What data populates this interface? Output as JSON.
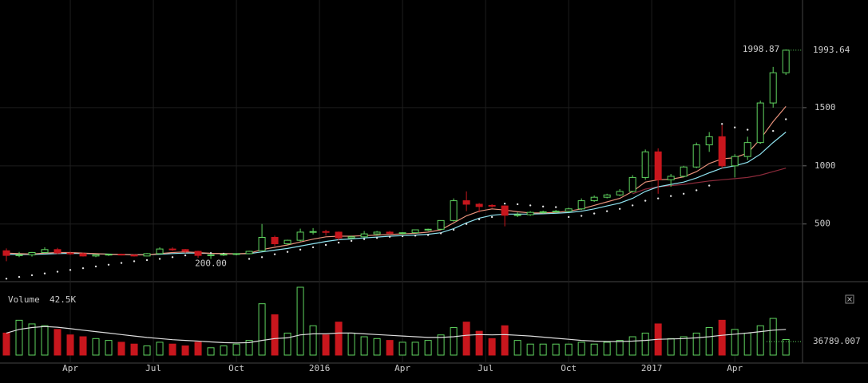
{
  "chart_data": {
    "type": "candlestick",
    "x": [
      3,
      5,
      7,
      9,
      11,
      13,
      15,
      17,
      19,
      21,
      23,
      25,
      27,
      29,
      31,
      33,
      35,
      37,
      39,
      41,
      43,
      45,
      47,
      49,
      51,
      53,
      55,
      57,
      59,
      61,
      63,
      65,
      67,
      69,
      71,
      73,
      75,
      77,
      79,
      81,
      83,
      85,
      87,
      89,
      91,
      93,
      95,
      97,
      99,
      101,
      103,
      105,
      107,
      109,
      111,
      113,
      115,
      117,
      119,
      121,
      123,
      125
    ],
    "open": [
      270,
      230,
      235,
      255,
      280,
      250,
      245,
      225,
      235,
      240,
      235,
      225,
      245,
      285,
      280,
      265,
      230,
      235,
      240,
      245,
      270,
      385,
      330,
      360,
      430,
      435,
      430,
      380,
      390,
      415,
      430,
      420,
      425,
      450,
      455,
      530,
      700,
      670,
      660,
      655,
      575,
      580,
      600,
      605,
      610,
      630,
      700,
      730,
      750,
      780,
      900,
      1120,
      880,
      910,
      990,
      1180,
      1250,
      1000,
      1080,
      1200,
      1540,
      1800
    ],
    "high": [
      290,
      260,
      260,
      300,
      295,
      260,
      255,
      240,
      245,
      245,
      240,
      250,
      300,
      300,
      285,
      270,
      240,
      245,
      250,
      270,
      500,
      400,
      365,
      460,
      465,
      450,
      435,
      400,
      440,
      440,
      440,
      430,
      450,
      460,
      530,
      720,
      780,
      680,
      670,
      660,
      600,
      610,
      615,
      620,
      640,
      720,
      745,
      760,
      800,
      920,
      1140,
      1150,
      930,
      1000,
      1200,
      1290,
      1350,
      1100,
      1250,
      1560,
      1850,
      1998.87
    ],
    "low": [
      180,
      215,
      220,
      250,
      240,
      235,
      220,
      215,
      225,
      230,
      220,
      222,
      240,
      270,
      250,
      210,
      200,
      225,
      235,
      240,
      265,
      310,
      320,
      350,
      410,
      400,
      360,
      370,
      385,
      400,
      410,
      410,
      420,
      440,
      450,
      520,
      610,
      600,
      640,
      480,
      560,
      570,
      590,
      595,
      600,
      620,
      690,
      720,
      740,
      770,
      880,
      760,
      820,
      900,
      980,
      1120,
      980,
      900,
      1050,
      1190,
      1500,
      1780
    ],
    "close": [
      230,
      235,
      255,
      280,
      250,
      245,
      225,
      235,
      240,
      235,
      225,
      245,
      285,
      280,
      265,
      230,
      235,
      240,
      245,
      265,
      385,
      330,
      360,
      430,
      435,
      430,
      380,
      390,
      415,
      430,
      420,
      425,
      450,
      455,
      530,
      700,
      670,
      650,
      655,
      575,
      580,
      600,
      605,
      610,
      630,
      700,
      730,
      750,
      780,
      900,
      1120,
      880,
      910,
      990,
      1180,
      1250,
      1000,
      1080,
      1200,
      1540,
      1800,
      1993.64
    ],
    "low_label": "200.00",
    "ma_fast": [
      250,
      245,
      242,
      250,
      255,
      255,
      250,
      245,
      240,
      238,
      235,
      235,
      245,
      255,
      260,
      255,
      248,
      245,
      244,
      248,
      280,
      300,
      320,
      345,
      370,
      390,
      395,
      395,
      400,
      405,
      410,
      415,
      420,
      430,
      450,
      510,
      570,
      610,
      630,
      620,
      605,
      595,
      595,
      600,
      610,
      630,
      660,
      690,
      720,
      780,
      860,
      880,
      885,
      905,
      950,
      1020,
      1060,
      1070,
      1110,
      1230,
      1380,
      1510
    ],
    "ma_mid": [
      240,
      238,
      238,
      242,
      246,
      248,
      247,
      244,
      241,
      239,
      237,
      236,
      240,
      246,
      250,
      250,
      247,
      245,
      244,
      245,
      260,
      275,
      290,
      310,
      330,
      350,
      365,
      372,
      380,
      388,
      395,
      400,
      405,
      412,
      425,
      460,
      510,
      550,
      575,
      585,
      585,
      585,
      588,
      592,
      598,
      610,
      630,
      655,
      680,
      720,
      780,
      820,
      840,
      860,
      895,
      940,
      980,
      1000,
      1030,
      1100,
      1200,
      1290
    ],
    "ma_slow": [
      null,
      null,
      null,
      null,
      null,
      null,
      null,
      null,
      null,
      null,
      null,
      null,
      null,
      null,
      null,
      null,
      null,
      null,
      null,
      null,
      null,
      null,
      null,
      null,
      null,
      null,
      null,
      null,
      null,
      null,
      null,
      null,
      null,
      null,
      null,
      null,
      null,
      null,
      null,
      null,
      null,
      null,
      null,
      null,
      null,
      null,
      null,
      null,
      null,
      760,
      800,
      820,
      830,
      840,
      855,
      870,
      880,
      890,
      900,
      920,
      950,
      980
    ],
    "sar": [
      30,
      45,
      60,
      75,
      90,
      105,
      120,
      135,
      150,
      165,
      180,
      190,
      200,
      215,
      230,
      255,
      250,
      245,
      240,
      200,
      215,
      240,
      260,
      280,
      300,
      320,
      340,
      355,
      370,
      380,
      390,
      395,
      400,
      405,
      420,
      450,
      500,
      540,
      560,
      675,
      670,
      660,
      650,
      645,
      560,
      570,
      590,
      610,
      630,
      660,
      700,
      720,
      740,
      760,
      790,
      830,
      1360,
      1330,
      1310,
      1200,
      1300,
      1400
    ],
    "volume_title": "Volume",
    "volume_last_label": "42.5K",
    "volume": [
      60000,
      95000,
      85000,
      80000,
      70000,
      55000,
      50000,
      45000,
      40000,
      35000,
      30000,
      25000,
      35000,
      30000,
      25000,
      35000,
      20000,
      25000,
      30000,
      40000,
      140000,
      110000,
      60000,
      185000,
      80000,
      55000,
      90000,
      60000,
      50000,
      45000,
      40000,
      35000,
      35000,
      40000,
      55000,
      75000,
      90000,
      65000,
      45000,
      80000,
      40000,
      30000,
      30000,
      30000,
      30000,
      35000,
      30000,
      35000,
      40000,
      50000,
      60000,
      85000,
      45000,
      50000,
      60000,
      75000,
      95000,
      70000,
      60000,
      80000,
      100000,
      42500
    ],
    "volume_ma": [
      60000,
      70000,
      75000,
      78000,
      76000,
      72000,
      68000,
      64000,
      60000,
      56000,
      52000,
      48000,
      45000,
      42000,
      40000,
      38000,
      36000,
      34000,
      33000,
      34000,
      40000,
      45000,
      47000,
      55000,
      58000,
      58000,
      60000,
      60000,
      58000,
      56000,
      54000,
      52000,
      50000,
      48000,
      48000,
      50000,
      54000,
      56000,
      55000,
      56000,
      54000,
      52000,
      49000,
      46000,
      43000,
      40000,
      38000,
      37000,
      37000,
      38000,
      40000,
      43000,
      44000,
      45000,
      47000,
      50000,
      54000,
      57000,
      60000,
      64000,
      68000,
      70000
    ],
    "volume_level": 36789.007,
    "xlim": [
      2,
      127.6
    ],
    "xticks": [
      {
        "value": 13,
        "label": "Apr"
      },
      {
        "value": 26,
        "label": "Jul"
      },
      {
        "value": 39,
        "label": "Oct"
      },
      {
        "value": 52,
        "label": "2016"
      },
      {
        "value": 65,
        "label": "Apr"
      },
      {
        "value": 78,
        "label": "Jul"
      },
      {
        "value": 91,
        "label": "Oct"
      },
      {
        "value": 104,
        "label": "2017"
      },
      {
        "value": 117,
        "label": "Apr"
      }
    ],
    "ylim": [
      25,
      2425
    ],
    "yticks": [
      500,
      1000,
      1500
    ],
    "vlim": [
      0,
      185000
    ],
    "up_color": "#5fd35f",
    "down_color": "#c8161d",
    "ma_colors": [
      "#e8927c",
      "#8fe3f0",
      "#8a2a3a"
    ],
    "sar_color": "#e0e0e0",
    "volume_ma_color": "#dddddd",
    "grid": true
  }
}
